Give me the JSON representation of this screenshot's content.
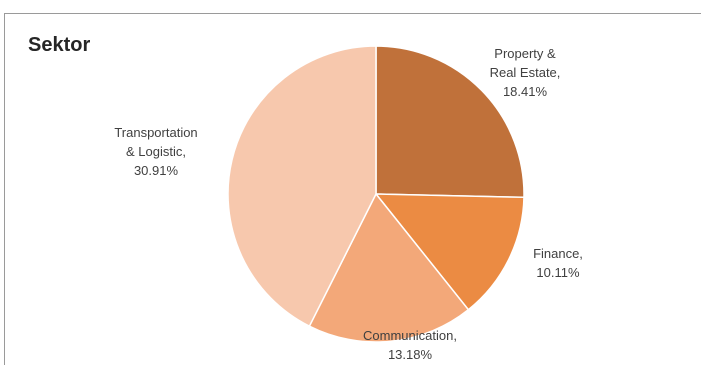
{
  "chart_data": {
    "type": "pie",
    "title": "Sektor",
    "slices": [
      {
        "label_lines": [
          "Property &",
          "Real Estate,",
          "18.41%"
        ],
        "value": 18.41,
        "color": "#c0713a"
      },
      {
        "label_lines": [
          "Finance,",
          "10.11%"
        ],
        "value": 10.11,
        "color": "#eb8b43"
      },
      {
        "label_lines": [
          "Communication,",
          "13.18%"
        ],
        "value": 13.18,
        "color": "#f3a879"
      },
      {
        "label_lines": [
          "Transportation",
          "& Logistic,",
          "30.91%"
        ],
        "value": 30.91,
        "color": "#f7c8ad"
      }
    ]
  }
}
